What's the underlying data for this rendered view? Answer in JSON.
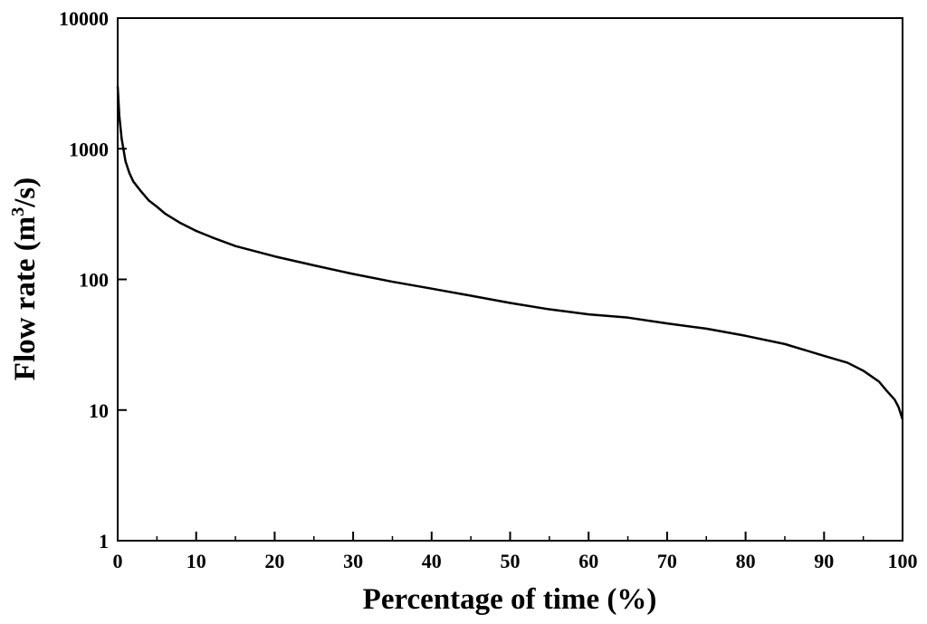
{
  "chart_data": {
    "type": "line",
    "title": "",
    "xlabel": "Percentage of time (%)",
    "ylabel_main": "Flow rate (m",
    "ylabel_sup": "3",
    "ylabel_end": "/s)",
    "xlim": [
      0,
      100
    ],
    "ylim": [
      1,
      10000
    ],
    "yscale": "log",
    "grid": false,
    "x_ticks": [
      0,
      10,
      20,
      30,
      40,
      50,
      60,
      70,
      80,
      90,
      100
    ],
    "x_tick_labels": [
      "0",
      "10",
      "20",
      "30",
      "40",
      "50",
      "60",
      "70",
      "80",
      "90",
      "100"
    ],
    "y_ticks": [
      1,
      10,
      100,
      1000,
      10000
    ],
    "y_tick_labels": [
      "1",
      "10",
      "100",
      "1000",
      "10000"
    ],
    "line_color": "#000000",
    "series": [
      {
        "x": [
          0,
          0.2,
          0.5,
          1,
          1.5,
          2,
          3,
          4,
          5,
          6,
          8,
          10,
          12,
          15,
          20,
          25,
          30,
          35,
          40,
          45,
          50,
          55,
          60,
          65,
          70,
          75,
          80,
          85,
          90,
          93,
          95,
          97,
          98,
          99,
          99.5,
          100
        ],
        "y": [
          3000,
          1800,
          1200,
          800,
          650,
          560,
          470,
          400,
          360,
          320,
          270,
          235,
          210,
          180,
          150,
          128,
          110,
          96,
          85,
          75,
          66,
          59,
          54,
          51,
          46,
          42,
          37,
          32,
          26,
          23,
          20,
          16.5,
          14,
          12,
          10.5,
          8.5
        ]
      }
    ]
  }
}
